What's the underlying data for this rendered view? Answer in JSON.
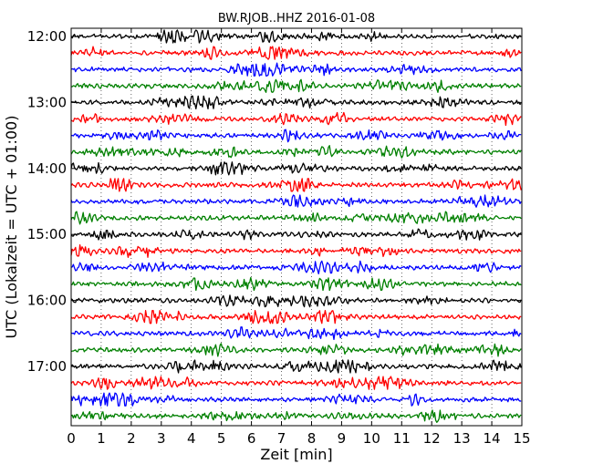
{
  "chart_data": {
    "type": "line",
    "title": "BW.RJOB..HHZ 2016-01-08",
    "xlabel": "Zeit  [min]",
    "ylabel": "UTC (Lokalzeit = UTC + 01:00)",
    "xlim": [
      0,
      15
    ],
    "x_ticks": [
      "0",
      "1",
      "2",
      "3",
      "4",
      "5",
      "6",
      "7",
      "8",
      "9",
      "10",
      "11",
      "12",
      "13",
      "14",
      "15"
    ],
    "y_ticks": [
      "12:00",
      "13:00",
      "14:00",
      "15:00",
      "16:00",
      "17:00"
    ],
    "grid": "x-dotted",
    "trace_colors": [
      "#000000",
      "#ff0000",
      "#0000ff",
      "#008000"
    ],
    "series": [
      {
        "start": "12:00",
        "color": "#000000"
      },
      {
        "start": "12:15",
        "color": "#ff0000"
      },
      {
        "start": "12:30",
        "color": "#0000ff"
      },
      {
        "start": "12:45",
        "color": "#008000"
      },
      {
        "start": "13:00",
        "color": "#000000"
      },
      {
        "start": "13:15",
        "color": "#ff0000"
      },
      {
        "start": "13:30",
        "color": "#0000ff"
      },
      {
        "start": "13:45",
        "color": "#008000"
      },
      {
        "start": "14:00",
        "color": "#000000"
      },
      {
        "start": "14:15",
        "color": "#ff0000"
      },
      {
        "start": "14:30",
        "color": "#0000ff"
      },
      {
        "start": "14:45",
        "color": "#008000"
      },
      {
        "start": "15:00",
        "color": "#000000"
      },
      {
        "start": "15:15",
        "color": "#ff0000"
      },
      {
        "start": "15:30",
        "color": "#0000ff"
      },
      {
        "start": "15:45",
        "color": "#008000"
      },
      {
        "start": "16:00",
        "color": "#000000"
      },
      {
        "start": "16:15",
        "color": "#ff0000"
      },
      {
        "start": "16:30",
        "color": "#0000ff"
      },
      {
        "start": "16:45",
        "color": "#008000"
      },
      {
        "start": "17:00",
        "color": "#000000"
      },
      {
        "start": "17:15",
        "color": "#ff0000"
      },
      {
        "start": "17:30",
        "color": "#0000ff"
      },
      {
        "start": "17:45",
        "color": "#008000"
      }
    ]
  }
}
